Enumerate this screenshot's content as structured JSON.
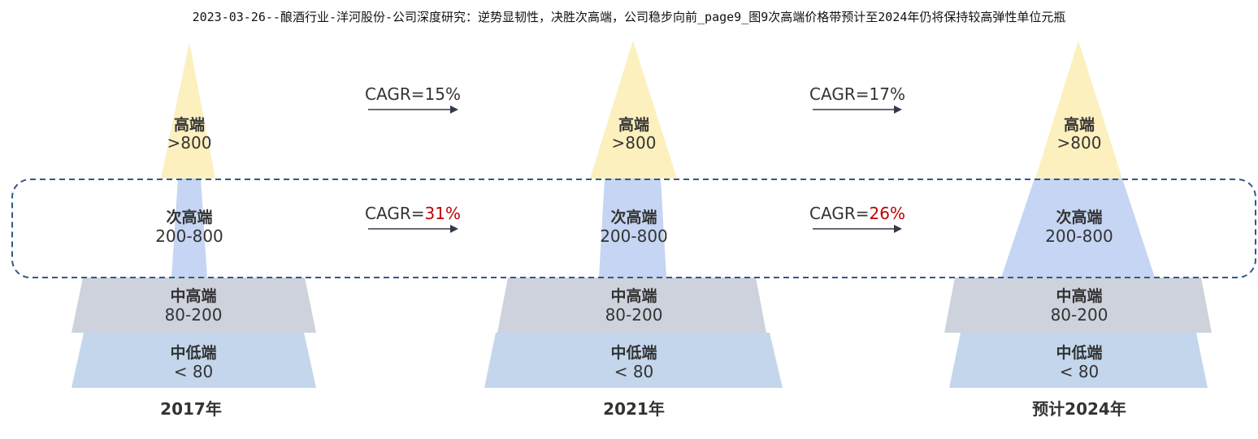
{
  "title": "2023-03-26--酿酒行业-洋河股份-公司深度研究：逆势显韧性，决胜次高端，公司稳步向前_page9_图9次高端价格带预计至2024年仍将保持较高弹性单位元瓶",
  "colors": {
    "high": "#fcf0be",
    "subhigh": "#c5d5f3",
    "midhigh": "#cdd2dc",
    "midlow": "#c3d6ec",
    "highlight": "#c00000",
    "arrow": "#333a4a",
    "dashed_box": "#2f5a8e"
  },
  "tiers": [
    {
      "key": "high",
      "name": "高端",
      "range": ">800"
    },
    {
      "key": "subhigh",
      "name": "次高端",
      "range": "200-800"
    },
    {
      "key": "midhigh",
      "name": "中高端",
      "range": "80-200"
    },
    {
      "key": "midlow",
      "name": "中低端",
      "range": "< 80"
    }
  ],
  "years": [
    "2017年",
    "2021年",
    "预计2024年"
  ],
  "cagr": {
    "high": [
      {
        "prefix": "CAGR=",
        "value": "15%"
      },
      {
        "prefix": "CAGR=",
        "value": "17%"
      }
    ],
    "subhigh": [
      {
        "prefix": "CAGR=",
        "value": "31%"
      },
      {
        "prefix": "CAGR=",
        "value": "26%"
      }
    ]
  }
}
